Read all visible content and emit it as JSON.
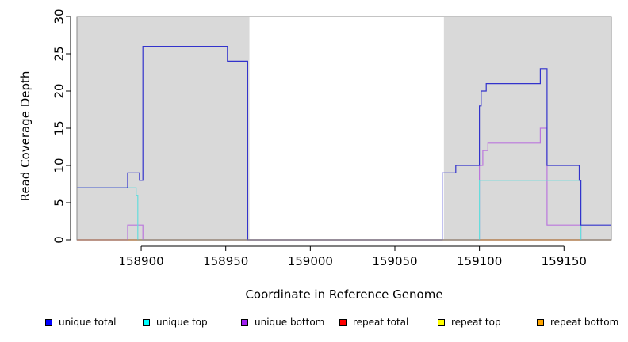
{
  "chart_data": {
    "type": "line",
    "title": "",
    "xlabel": "Coordinate in Reference Genome",
    "ylabel": "Read Coverage Depth",
    "xlim": [
      158862,
      159178
    ],
    "ylim": [
      0,
      30
    ],
    "x_ticks": [
      158900,
      158950,
      159000,
      159050,
      159100,
      159150
    ],
    "y_ticks": [
      0,
      5,
      10,
      15,
      20,
      25,
      30
    ],
    "shaded_regions": [
      {
        "start": 158862,
        "end": 158964,
        "color": "#d9d9d9"
      },
      {
        "start": 159079,
        "end": 159178,
        "color": "#d9d9d9"
      }
    ],
    "legend_position": "bottom",
    "series": [
      {
        "name": "unique total",
        "color": "#0000ff",
        "line_color": "#3333cc",
        "points": [
          [
            158862,
            7
          ],
          [
            158892,
            7
          ],
          [
            158892,
            9
          ],
          [
            158899,
            9
          ],
          [
            158899,
            8
          ],
          [
            158901,
            8
          ],
          [
            158901,
            26
          ],
          [
            158951,
            26
          ],
          [
            158951,
            24
          ],
          [
            158963,
            24
          ],
          [
            158963,
            0
          ],
          [
            159078,
            0
          ],
          [
            159078,
            9
          ],
          [
            159086,
            9
          ],
          [
            159086,
            10
          ],
          [
            159100,
            10
          ],
          [
            159100,
            18
          ],
          [
            159101,
            18
          ],
          [
            159101,
            20
          ],
          [
            159104,
            20
          ],
          [
            159104,
            21
          ],
          [
            159136,
            21
          ],
          [
            159136,
            23
          ],
          [
            159140,
            23
          ],
          [
            159140,
            10
          ],
          [
            159159,
            10
          ],
          [
            159159,
            8
          ],
          [
            159160,
            8
          ],
          [
            159160,
            6
          ],
          [
            159160,
            2
          ],
          [
            159178,
            2
          ]
        ]
      },
      {
        "name": "unique top",
        "color": "#00ffff",
        "line_color": "#66dddd",
        "points": [
          [
            158862,
            7
          ],
          [
            158897,
            7
          ],
          [
            158897,
            6
          ],
          [
            158898,
            6
          ],
          [
            158898,
            0
          ],
          [
            159100,
            0
          ],
          [
            159100,
            8
          ],
          [
            159160,
            8
          ],
          [
            159160,
            0
          ],
          [
            159178,
            0
          ]
        ]
      },
      {
        "name": "unique bottom",
        "color": "#a020f0",
        "line_color": "#bb77dd",
        "points": [
          [
            158862,
            0
          ],
          [
            158892,
            0
          ],
          [
            158892,
            2
          ],
          [
            158901,
            2
          ],
          [
            158901,
            0
          ],
          [
            159100,
            0
          ],
          [
            159100,
            10
          ],
          [
            159102,
            10
          ],
          [
            159102,
            12
          ],
          [
            159105,
            12
          ],
          [
            159105,
            13
          ],
          [
            159136,
            13
          ],
          [
            159136,
            15
          ],
          [
            159140,
            15
          ],
          [
            159140,
            2
          ],
          [
            159160,
            2
          ],
          [
            159160,
            0
          ],
          [
            159178,
            0
          ]
        ]
      },
      {
        "name": "repeat total",
        "color": "#ff0000",
        "line_color": "#ff0000",
        "points": [
          [
            158862,
            0
          ],
          [
            159178,
            0
          ]
        ]
      },
      {
        "name": "repeat top",
        "color": "#ffff00",
        "line_color": "#ffff00",
        "points": [
          [
            158862,
            0
          ],
          [
            159178,
            0
          ]
        ]
      },
      {
        "name": "repeat bottom",
        "color": "#ffa500",
        "line_color": "#ff9900",
        "points": [
          [
            158862,
            0
          ],
          [
            159178,
            0
          ]
        ]
      }
    ]
  }
}
